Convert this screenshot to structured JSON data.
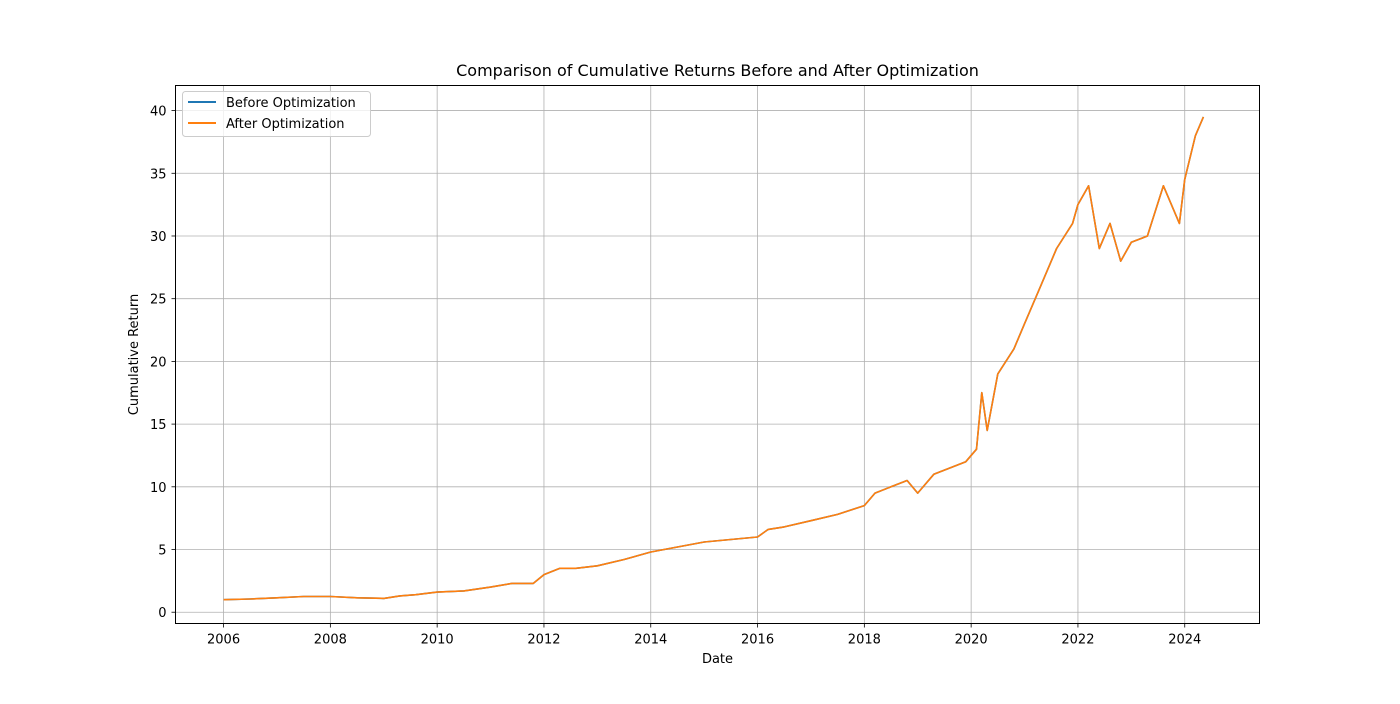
{
  "chart_data": {
    "type": "line",
    "title": "Comparison of Cumulative Returns Before and After Optimization",
    "xlabel": "Date",
    "ylabel": "Cumulative Return",
    "xlim": [
      2005.1,
      2025.4
    ],
    "ylim": [
      -0.9,
      42.0
    ],
    "x_ticks": [
      2006,
      2008,
      2010,
      2012,
      2014,
      2016,
      2018,
      2020,
      2022,
      2024
    ],
    "x_tick_labels": [
      "2006",
      "2008",
      "2010",
      "2012",
      "2014",
      "2016",
      "2018",
      "2020",
      "2022",
      "2024"
    ],
    "y_ticks": [
      0,
      5,
      10,
      15,
      20,
      25,
      30,
      35,
      40
    ],
    "y_tick_labels": [
      "0",
      "5",
      "10",
      "15",
      "20",
      "25",
      "30",
      "35",
      "40"
    ],
    "grid": true,
    "legend_position": "upper-left",
    "series": [
      {
        "name": "Before Optimization",
        "color": "#1f77b4",
        "x": [
          2006.0,
          2006.5,
          2007.0,
          2007.5,
          2008.0,
          2008.5,
          2009.0,
          2009.3,
          2009.6,
          2010.0,
          2010.5,
          2011.0,
          2011.4,
          2011.8,
          2012.0,
          2012.3,
          2012.6,
          2013.0,
          2013.5,
          2014.0,
          2014.5,
          2015.0,
          2015.5,
          2016.0,
          2016.2,
          2016.5,
          2017.0,
          2017.5,
          2018.0,
          2018.2,
          2018.5,
          2018.8,
          2019.0,
          2019.3,
          2019.6,
          2019.9,
          2020.1,
          2020.2,
          2020.3,
          2020.5,
          2020.8,
          2021.0,
          2021.3,
          2021.6,
          2021.9,
          2022.0,
          2022.2,
          2022.4,
          2022.6,
          2022.8,
          2023.0,
          2023.3,
          2023.6,
          2023.9,
          2024.0,
          2024.2,
          2024.35
        ],
        "values": [
          1.0,
          1.05,
          1.15,
          1.25,
          1.25,
          1.15,
          1.1,
          1.3,
          1.4,
          1.6,
          1.7,
          2.0,
          2.3,
          2.3,
          3.0,
          3.5,
          3.5,
          3.7,
          4.2,
          4.8,
          5.2,
          5.6,
          5.8,
          6.0,
          6.6,
          6.8,
          7.3,
          7.8,
          8.5,
          9.5,
          10.0,
          10.5,
          9.5,
          11.0,
          11.5,
          12.0,
          13.0,
          17.5,
          14.5,
          19.0,
          21.0,
          23.0,
          26.0,
          29.0,
          31.0,
          32.5,
          34.0,
          29.0,
          31.0,
          28.0,
          29.5,
          30.0,
          34.0,
          31.0,
          34.5,
          38.0,
          39.5
        ]
      },
      {
        "name": "After Optimization",
        "color": "#ff7f0e",
        "x": [
          2006.0,
          2006.5,
          2007.0,
          2007.5,
          2008.0,
          2008.5,
          2009.0,
          2009.3,
          2009.6,
          2010.0,
          2010.5,
          2011.0,
          2011.4,
          2011.8,
          2012.0,
          2012.3,
          2012.6,
          2013.0,
          2013.5,
          2014.0,
          2014.5,
          2015.0,
          2015.5,
          2016.0,
          2016.2,
          2016.5,
          2017.0,
          2017.5,
          2018.0,
          2018.2,
          2018.5,
          2018.8,
          2019.0,
          2019.3,
          2019.6,
          2019.9,
          2020.1,
          2020.2,
          2020.3,
          2020.5,
          2020.8,
          2021.0,
          2021.3,
          2021.6,
          2021.9,
          2022.0,
          2022.2,
          2022.4,
          2022.6,
          2022.8,
          2023.0,
          2023.3,
          2023.6,
          2023.9,
          2024.0,
          2024.2,
          2024.35
        ],
        "values": [
          1.0,
          1.05,
          1.15,
          1.25,
          1.25,
          1.15,
          1.1,
          1.3,
          1.4,
          1.6,
          1.7,
          2.0,
          2.3,
          2.3,
          3.0,
          3.5,
          3.5,
          3.7,
          4.2,
          4.8,
          5.2,
          5.6,
          5.8,
          6.0,
          6.6,
          6.8,
          7.3,
          7.8,
          8.5,
          9.5,
          10.0,
          10.5,
          9.5,
          11.0,
          11.5,
          12.0,
          13.0,
          17.5,
          14.5,
          19.0,
          21.0,
          23.0,
          26.0,
          29.0,
          31.0,
          32.5,
          34.0,
          29.0,
          31.0,
          28.0,
          29.5,
          30.0,
          34.0,
          31.0,
          34.5,
          38.0,
          39.5
        ]
      }
    ]
  }
}
